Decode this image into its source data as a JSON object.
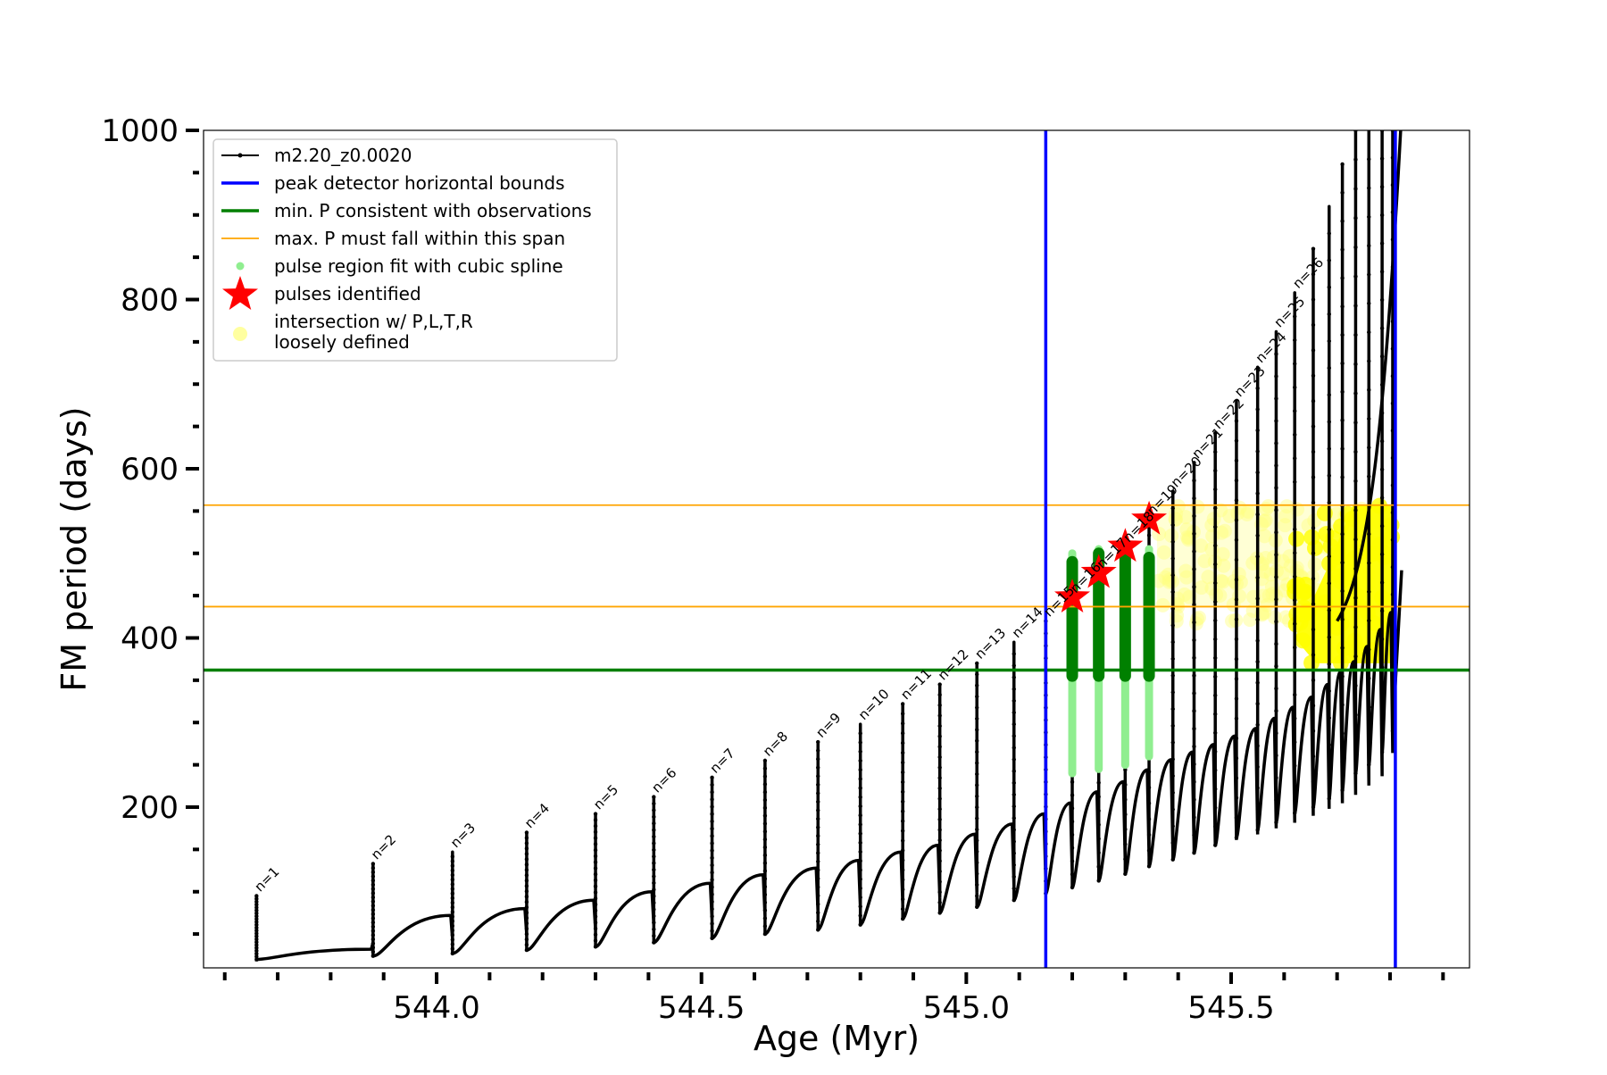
{
  "chart_data": {
    "type": "line",
    "title": "",
    "xlabel": "Age (Myr)",
    "ylabel": "FM period (days)",
    "xlim": [
      543.56,
      545.95
    ],
    "ylim": [
      10,
      1000
    ],
    "x_ticks": [
      544.0,
      544.5,
      545.0,
      545.5
    ],
    "x_tick_labels": [
      "544.0",
      "544.5",
      "545.0",
      "545.5"
    ],
    "y_ticks": [
      200,
      400,
      600,
      800,
      1000
    ],
    "y_tick_labels": [
      "200",
      "400",
      "600",
      "800",
      "1000"
    ],
    "grid": false,
    "legend_position": "upper-left",
    "colors": {
      "track": "#000000",
      "bounds": "#0000ff",
      "min_p": "#007f00",
      "max_p_span": "#ffa500",
      "spline": "#90ee90",
      "spline_dark": "#008000",
      "pulse_star": "#ff0000",
      "intersection": "#ffff00"
    },
    "legend": [
      {
        "label": "m2.20_z0.0020",
        "marker": "line-dot",
        "color": "#000000"
      },
      {
        "label": "peak detector horizontal bounds",
        "marker": "line",
        "color": "#0000ff"
      },
      {
        "label": "min. P consistent with observations",
        "marker": "line",
        "color": "#007f00"
      },
      {
        "label": "max. P must fall within this span",
        "marker": "thin-line",
        "color": "#ffa500"
      },
      {
        "label": "pulse region fit with cubic spline",
        "marker": "dot",
        "color": "#90ee90"
      },
      {
        "label": "pulses identified",
        "marker": "star",
        "color": "#ff0000"
      },
      {
        "label": "intersection w/ P,L,T,R\nloosely defined",
        "marker": "circle",
        "color": "#ffffa0"
      }
    ],
    "vertical_lines": [
      545.15,
      545.81
    ],
    "horizontal_lines": {
      "min_p": 362,
      "max_p_span": [
        437,
        557
      ]
    },
    "pulses": [
      {
        "n": 1,
        "age": 543.66,
        "peak": 95,
        "min": 20,
        "base": 32
      },
      {
        "n": 2,
        "age": 543.88,
        "peak": 133,
        "min": 24,
        "base": 72
      },
      {
        "n": 3,
        "age": 544.03,
        "peak": 147,
        "min": 27,
        "base": 80
      },
      {
        "n": 4,
        "age": 544.17,
        "peak": 170,
        "min": 31,
        "base": 90
      },
      {
        "n": 5,
        "age": 544.3,
        "peak": 192,
        "min": 35,
        "base": 100
      },
      {
        "n": 6,
        "age": 544.41,
        "peak": 212,
        "min": 40,
        "base": 110
      },
      {
        "n": 7,
        "age": 544.52,
        "peak": 235,
        "min": 45,
        "base": 120
      },
      {
        "n": 8,
        "age": 544.62,
        "peak": 255,
        "min": 50,
        "base": 128
      },
      {
        "n": 9,
        "age": 544.72,
        "peak": 277,
        "min": 55,
        "base": 137
      },
      {
        "n": 10,
        "age": 544.8,
        "peak": 298,
        "min": 61,
        "base": 147
      },
      {
        "n": 11,
        "age": 544.88,
        "peak": 322,
        "min": 68,
        "base": 155
      },
      {
        "n": 12,
        "age": 544.95,
        "peak": 345,
        "min": 75,
        "base": 168
      },
      {
        "n": 13,
        "age": 545.02,
        "peak": 370,
        "min": 82,
        "base": 180
      },
      {
        "n": 14,
        "age": 545.09,
        "peak": 395,
        "min": 90,
        "base": 192
      },
      {
        "n": 15,
        "age": 545.15,
        "peak": 420,
        "min": 98,
        "base": 205
      },
      {
        "n": 16,
        "age": 545.2,
        "peak": 448,
        "min": 105,
        "base": 218
      },
      {
        "n": 17,
        "age": 545.25,
        "peak": 477,
        "min": 113,
        "base": 230
      },
      {
        "n": 18,
        "age": 545.3,
        "peak": 508,
        "min": 121,
        "base": 244
      },
      {
        "n": 19,
        "age": 545.345,
        "peak": 540,
        "min": 130,
        "base": 256
      },
      {
        "n": 20,
        "age": 545.39,
        "peak": 573,
        "min": 138,
        "base": 265
      },
      {
        "n": 21,
        "age": 545.43,
        "peak": 607,
        "min": 146,
        "base": 274
      },
      {
        "n": 22,
        "age": 545.47,
        "peak": 642,
        "min": 155,
        "base": 284
      },
      {
        "n": 23,
        "age": 545.51,
        "peak": 680,
        "min": 164,
        "base": 293
      },
      {
        "n": 24,
        "age": 545.55,
        "peak": 720,
        "min": 173,
        "base": 305
      },
      {
        "n": 25,
        "age": 545.585,
        "peak": 762,
        "min": 182,
        "base": 318
      },
      {
        "n": 26,
        "age": 545.62,
        "peak": 808,
        "min": 193,
        "base": 330
      }
    ],
    "extra_spikes": [
      {
        "age": 545.655,
        "peak": 860,
        "min": 200,
        "base": 345
      },
      {
        "age": 545.685,
        "peak": 910,
        "min": 210,
        "base": 360
      },
      {
        "age": 545.71,
        "peak": 960,
        "min": 220,
        "base": 372
      },
      {
        "age": 545.735,
        "peak": 1000,
        "min": 240,
        "base": 390
      },
      {
        "age": 545.76,
        "peak": 1000,
        "min": 250,
        "base": 410
      },
      {
        "age": 545.785,
        "peak": 1000,
        "min": 265,
        "base": 430
      },
      {
        "age": 545.805,
        "peak": 1000,
        "min": 290,
        "base": 480
      }
    ],
    "pulses_identified": [
      {
        "age": 545.2,
        "period": 448
      },
      {
        "age": 545.25,
        "period": 477
      },
      {
        "age": 545.3,
        "period": 508
      },
      {
        "age": 545.345,
        "period": 540
      }
    ],
    "spline_regions": [
      {
        "age": 545.2,
        "low": 240,
        "high": 500,
        "dark_low": 355,
        "dark_high": 490
      },
      {
        "age": 545.25,
        "low": 245,
        "high": 505,
        "dark_low": 355,
        "dark_high": 500
      },
      {
        "age": 545.3,
        "low": 250,
        "high": 510,
        "dark_low": 355,
        "dark_high": 500
      },
      {
        "age": 545.345,
        "low": 260,
        "high": 505,
        "dark_low": 355,
        "dark_high": 495
      }
    ],
    "intersection_band": {
      "x_start": 545.36,
      "x_end": 545.81,
      "y_low": 437,
      "y_high": 557
    },
    "intersection_dense": {
      "x_start": 545.62,
      "x_end": 545.81,
      "y_low": 370,
      "y_high": 557
    }
  }
}
